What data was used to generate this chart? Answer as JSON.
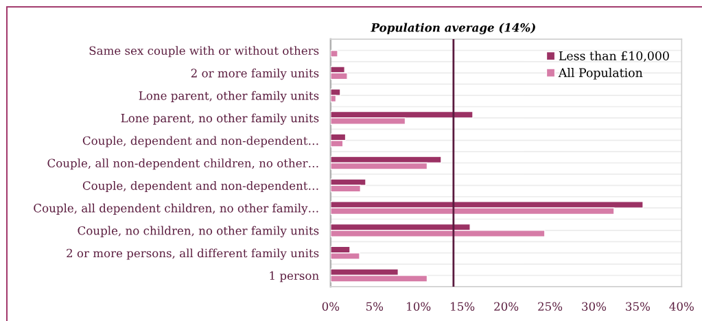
{
  "chart_data": {
    "type": "bar",
    "orientation": "horizontal",
    "categories": [
      "Same sex couple with or without others",
      "2 or more family units",
      "Lone parent, other family units",
      "Lone parent, no other family units",
      "Couple, dependent and non-dependent…",
      "Couple, all non-dependent children, no other…",
      "Couple, dependent and non-dependent…",
      "Couple, all dependent children, no other family…",
      "Couple, no children, no other family units",
      "2 or more persons, all different family units",
      "1 person"
    ],
    "series": [
      {
        "name": "Less than £10,000",
        "color": "#9b3264",
        "values": [
          null,
          1.6,
          1.1,
          16.2,
          1.7,
          12.6,
          4.0,
          35.6,
          15.9,
          2.2,
          7.7
        ]
      },
      {
        "name": "All Population",
        "color": "#d67ca7",
        "values": [
          0.8,
          1.9,
          0.6,
          8.5,
          1.4,
          11.0,
          3.4,
          32.3,
          24.4,
          3.3,
          11.0
        ]
      }
    ],
    "xlim": [
      0,
      40
    ],
    "xticks": [
      {
        "value": 0,
        "label": "0%"
      },
      {
        "value": 5,
        "label": "5%"
      },
      {
        "value": 10,
        "label": "10%"
      },
      {
        "value": 15,
        "label": "15%"
      },
      {
        "value": 20,
        "label": "20%"
      },
      {
        "value": 25,
        "label": "25%"
      },
      {
        "value": 30,
        "label": "30%"
      },
      {
        "value": 35,
        "label": "35%"
      },
      {
        "value": 40,
        "label": "40%"
      }
    ],
    "ref_lines": [
      {
        "axis": "x",
        "value": 14,
        "label": "Population average (14%)",
        "color": "#5a1a3e"
      }
    ],
    "grid": "y",
    "legend": "top right"
  }
}
